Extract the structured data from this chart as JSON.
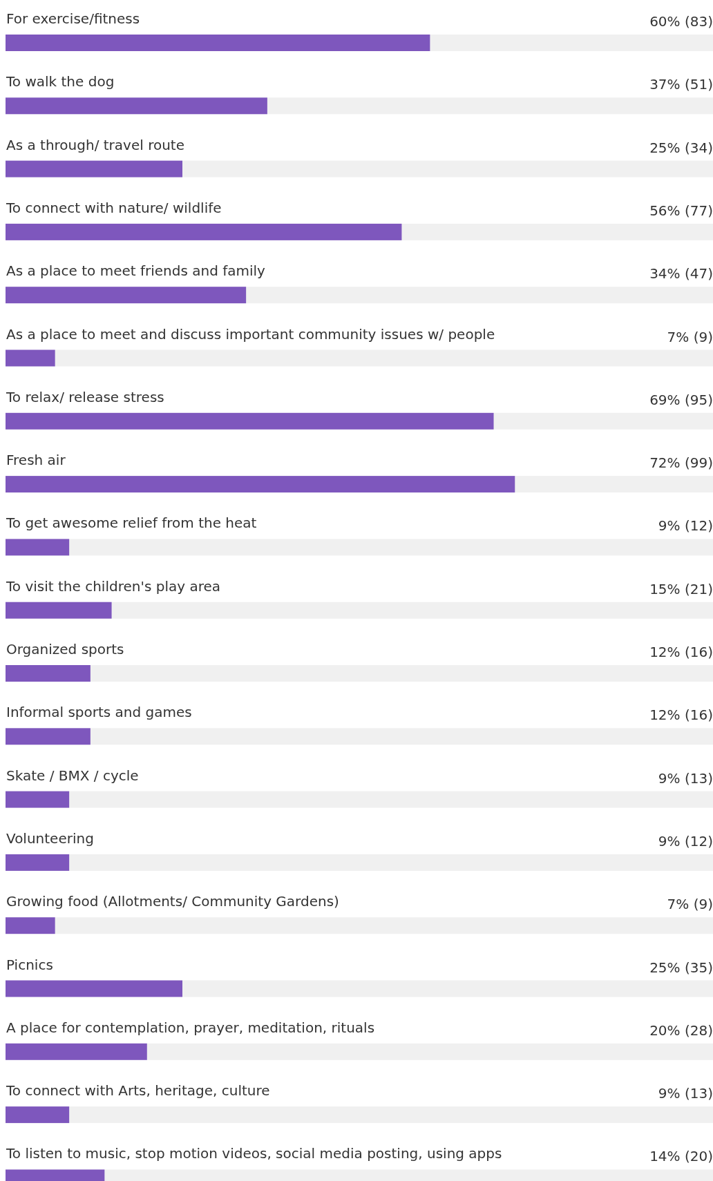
{
  "chart_data": {
    "type": "bar",
    "orientation": "horizontal",
    "categories": [
      "For exercise/fitness",
      "To walk the dog",
      "As a through/ travel route",
      "To connect with nature/ wildlife",
      "As a place to meet friends and family",
      "As a place to meet and discuss important community issues w/ people",
      "To relax/ release stress",
      "Fresh air",
      "To get awesome relief from the heat",
      "To visit the children's play area",
      "Organized sports",
      "Informal sports and games",
      "Skate / BMX / cycle",
      "Volunteering",
      "Growing food (Allotments/ Community Gardens)",
      "Picnics",
      "A place for contemplation, prayer, meditation, rituals",
      "To connect with Arts, heritage, culture",
      "To listen to music, stop motion videos, social media posting, using apps"
    ],
    "values": [
      60,
      37,
      25,
      56,
      34,
      7,
      69,
      72,
      9,
      15,
      12,
      12,
      9,
      9,
      7,
      25,
      20,
      9,
      14
    ],
    "value_labels": [
      "60% (83)",
      "37% (51)",
      "25% (34)",
      "56% (77)",
      "34% (47)",
      "7% (9)",
      "69% (95)",
      "72% (99)",
      "9% (12)",
      "15% (21)",
      "12% (16)",
      "12% (16)",
      "9% (13)",
      "9% (12)",
      "7% (9)",
      "25% (35)",
      "20% (28)",
      "9% (13)",
      "14% (20)"
    ],
    "color": "#7e57bd",
    "xlim": [
      0,
      100
    ]
  }
}
